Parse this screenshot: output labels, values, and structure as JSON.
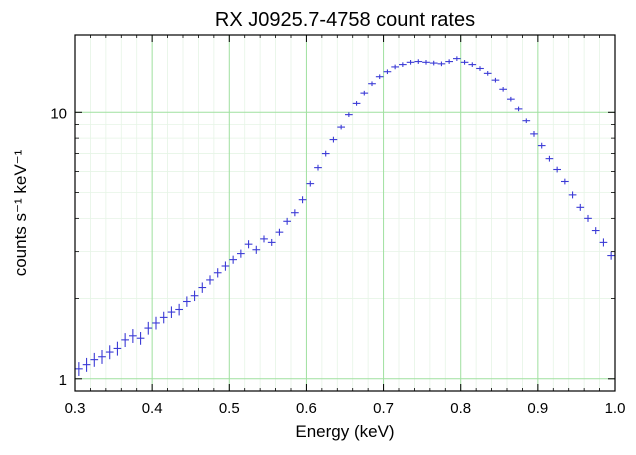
{
  "chart_data": {
    "type": "scatter",
    "title": "RX J0925.7-4758 count rates",
    "xlabel": "Energy (keV)",
    "ylabel": "counts s⁻¹ keV⁻¹",
    "xlim": [
      0.3,
      1.0
    ],
    "ylim": [
      0.9,
      19.5
    ],
    "y_scale": "log",
    "x_ticks": [
      "0.3",
      "0.4",
      "0.5",
      "0.6",
      "0.7",
      "0.8",
      "0.9",
      "1.0"
    ],
    "y_ticks": [
      "1",
      "10"
    ],
    "grid": true,
    "marker_color": "#3b3bd6",
    "grid_major_color": "#9fe09f",
    "grid_minor_color": "#e6f4e6",
    "x_error_half_width": 0.005,
    "series": [
      {
        "x": [
          0.305,
          0.315,
          0.325,
          0.335,
          0.345,
          0.355,
          0.365,
          0.375,
          0.385,
          0.395,
          0.405,
          0.415,
          0.425,
          0.435,
          0.445,
          0.455,
          0.465,
          0.475,
          0.485,
          0.495,
          0.505,
          0.515,
          0.525,
          0.535,
          0.545,
          0.555,
          0.565,
          0.575,
          0.585,
          0.595,
          0.605,
          0.615,
          0.625,
          0.635,
          0.645,
          0.655,
          0.665,
          0.675,
          0.685,
          0.695,
          0.705,
          0.715,
          0.725,
          0.735,
          0.745,
          0.755,
          0.765,
          0.775,
          0.785,
          0.795,
          0.805,
          0.815,
          0.825,
          0.835,
          0.845,
          0.855,
          0.865,
          0.875,
          0.885,
          0.895,
          0.905,
          0.915,
          0.925,
          0.935,
          0.945,
          0.955,
          0.965,
          0.975,
          0.985,
          0.995
        ],
        "y": [
          1.09,
          1.13,
          1.18,
          1.21,
          1.26,
          1.3,
          1.4,
          1.45,
          1.42,
          1.55,
          1.62,
          1.7,
          1.78,
          1.82,
          1.95,
          2.05,
          2.2,
          2.35,
          2.5,
          2.65,
          2.8,
          2.95,
          3.2,
          3.05,
          3.35,
          3.25,
          3.55,
          3.9,
          4.2,
          4.7,
          5.4,
          6.2,
          7.0,
          7.9,
          8.8,
          9.8,
          10.8,
          11.8,
          12.8,
          13.6,
          14.2,
          14.8,
          15.1,
          15.4,
          15.5,
          15.4,
          15.3,
          15.2,
          15.5,
          15.9,
          15.4,
          15.1,
          14.6,
          14.0,
          13.2,
          12.2,
          11.2,
          10.3,
          9.3,
          8.3,
          7.5,
          6.7,
          6.1,
          5.5,
          4.9,
          4.4,
          4.0,
          3.6,
          3.25,
          2.9
        ],
        "y_err_rel": [
          0.06,
          0.06,
          0.06,
          0.06,
          0.06,
          0.06,
          0.06,
          0.06,
          0.055,
          0.055,
          0.055,
          0.05,
          0.05,
          0.05,
          0.045,
          0.045,
          0.045,
          0.04,
          0.04,
          0.04,
          0.035,
          0.035,
          0.035,
          0.035,
          0.03,
          0.03,
          0.03,
          0.03,
          0.03,
          0.03,
          0.025,
          0.025,
          0.025,
          0.025,
          0.02,
          0.02,
          0.02,
          0.02,
          0.02,
          0.02,
          0.02,
          0.02,
          0.02,
          0.02,
          0.02,
          0.02,
          0.02,
          0.02,
          0.02,
          0.02,
          0.02,
          0.02,
          0.02,
          0.02,
          0.02,
          0.02,
          0.02,
          0.02,
          0.02,
          0.025,
          0.025,
          0.025,
          0.025,
          0.025,
          0.03,
          0.03,
          0.03,
          0.03,
          0.035,
          0.035
        ]
      }
    ]
  }
}
